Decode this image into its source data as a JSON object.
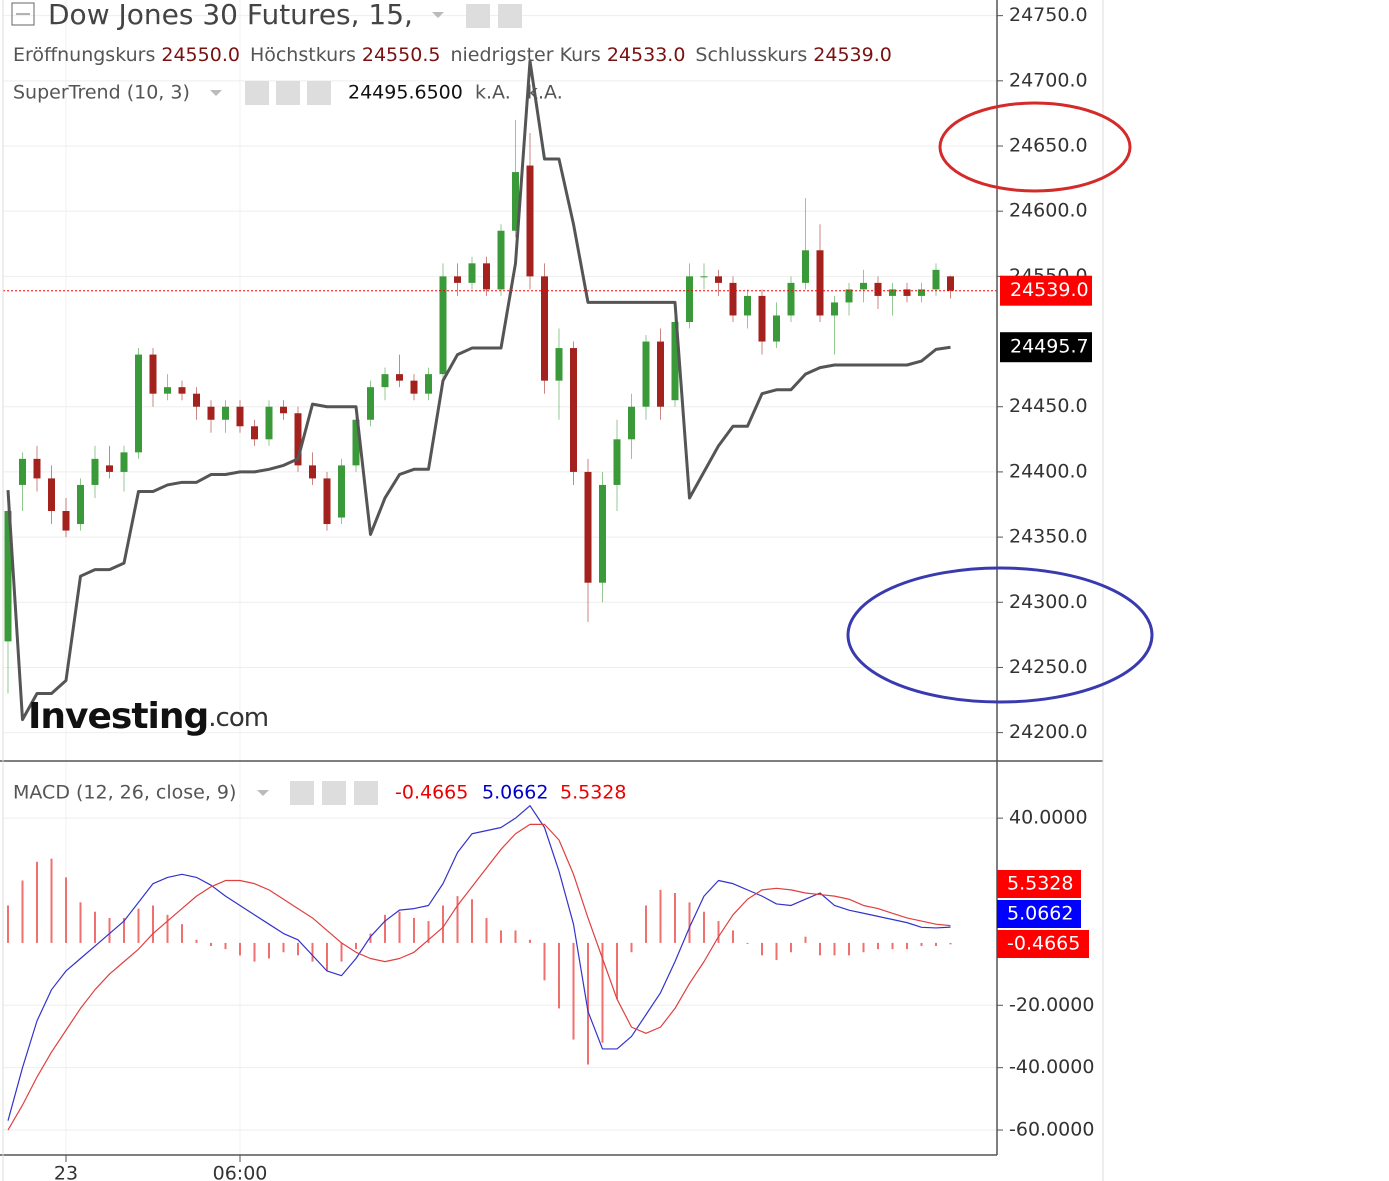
{
  "header": {
    "title": "Dow Jones 30 Futures, 15,",
    "ohlc": [
      {
        "label": "Eröffnungskurs",
        "value": "24550.0"
      },
      {
        "label": "Höchstkurs",
        "value": "24550.5"
      },
      {
        "label": "niedrigster Kurs",
        "value": "24533.0"
      },
      {
        "label": "Schlusskurs",
        "value": "24539.0"
      }
    ],
    "indicator_extra": [
      "k.A.",
      "k.A."
    ]
  },
  "logo": {
    "brand": "Investing",
    "suffix": ".com"
  },
  "chart_data": [
    {
      "type": "candlestick",
      "categories": [
        null,
        null,
        null,
        null,
        "23",
        null,
        null,
        null,
        null,
        null,
        null,
        null,
        null,
        null,
        null,
        null,
        "06:00",
        null,
        null,
        null,
        null,
        null,
        null,
        null,
        null,
        null,
        null,
        null,
        null,
        null,
        null,
        null,
        null,
        null,
        null,
        null,
        null,
        null,
        null,
        null,
        null,
        null,
        null,
        null,
        null,
        null,
        null,
        null,
        null,
        null,
        null,
        null,
        null,
        null,
        null,
        null,
        null,
        null,
        null,
        null,
        null,
        null,
        null,
        null,
        null,
        null
      ],
      "open": [
        24270,
        24390,
        24410,
        24395,
        24370,
        24360,
        24390,
        24405,
        24400,
        24415,
        24490,
        24460,
        24465,
        24460,
        24450,
        24440,
        24450,
        24435,
        24425,
        24450,
        24445,
        24405,
        24395,
        24365,
        24405,
        24440,
        24465,
        24475,
        24470,
        24460,
        24475,
        24550,
        24545,
        24560,
        24540,
        24585,
        24635,
        24550,
        24470,
        24495,
        24400,
        24315,
        24390,
        24425,
        24450,
        24500,
        24455,
        24515,
        24550,
        24550,
        24545,
        24520,
        24535,
        24500,
        24520,
        24545,
        24570,
        24520,
        24530,
        24540,
        24545,
        24535,
        24540,
        24535,
        24540,
        24550
      ],
      "high": [
        24380,
        24415,
        24420,
        24405,
        24380,
        24395,
        24420,
        24420,
        24420,
        24495,
        24495,
        24475,
        24470,
        24465,
        24455,
        24455,
        24455,
        24440,
        24455,
        24455,
        24450,
        24415,
        24400,
        24410,
        24445,
        24470,
        24480,
        24490,
        24475,
        24480,
        24560,
        24560,
        24565,
        24565,
        24590,
        24670,
        24660,
        24560,
        24510,
        24500,
        24410,
        24400,
        24440,
        24460,
        24505,
        24510,
        24520,
        24560,
        24560,
        24555,
        24550,
        24540,
        24540,
        24530,
        24550,
        24610,
        24590,
        24535,
        24545,
        24555,
        24550,
        24545,
        24545,
        24545,
        24560,
        24550.5
      ],
      "low": [
        24230,
        24370,
        24385,
        24360,
        24350,
        24355,
        24380,
        24395,
        24385,
        24410,
        24450,
        24455,
        24455,
        24440,
        24430,
        24430,
        24430,
        24420,
        24420,
        24440,
        24400,
        24390,
        24355,
        24360,
        24400,
        24435,
        24455,
        24465,
        24455,
        24455,
        24470,
        24535,
        24540,
        24535,
        24535,
        24580,
        24540,
        24460,
        24440,
        24390,
        24285,
        24300,
        24370,
        24410,
        24440,
        24440,
        24450,
        24510,
        24540,
        24535,
        24515,
        24510,
        24490,
        24495,
        24515,
        24540,
        24515,
        24490,
        24520,
        24530,
        24525,
        24520,
        24530,
        24530,
        24535,
        24533
      ],
      "close": [
        24370,
        24410,
        24395,
        24370,
        24355,
        24390,
        24410,
        24400,
        24415,
        24490,
        24460,
        24465,
        24460,
        24450,
        24440,
        24450,
        24435,
        24425,
        24450,
        24445,
        24405,
        24395,
        24360,
        24405,
        24440,
        24465,
        24475,
        24470,
        24460,
        24475,
        24550,
        24545,
        24560,
        24540,
        24585,
        24630,
        24550,
        24470,
        24495,
        24400,
        24315,
        24390,
        24425,
        24450,
        24500,
        24450,
        24515,
        24550,
        24550,
        24545,
        24520,
        24535,
        24500,
        24520,
        24545,
        24570,
        24520,
        24530,
        24540,
        24545,
        24535,
        24540,
        24535,
        24540,
        24555,
        24539
      ],
      "close_label": "24539.0",
      "up_color": "#3a9a3a",
      "down_color": "#a3221e",
      "last_price_color": "#ff0000",
      "series": [
        {
          "name": "SuperTrend (10, 3)",
          "color": "#555555",
          "value_label": "24495.6500",
          "badge": "24495.7",
          "values": [
            24386,
            24210,
            24230,
            24230,
            24240,
            24320,
            24325,
            24325,
            24330,
            24385,
            24385,
            24390,
            24392,
            24392,
            24398,
            24398,
            24400,
            24400,
            24402,
            24405,
            24410,
            24452,
            24450,
            24450,
            24450,
            24352,
            24380,
            24398,
            24402,
            24402,
            24470,
            24490,
            24495,
            24495,
            24495,
            24560,
            24715,
            24640,
            24640,
            24590,
            24530,
            24530,
            24530,
            24530,
            24530,
            24530,
            24530,
            24380,
            24400,
            24420,
            24435,
            24435,
            24460,
            24463,
            24463,
            24475,
            24480,
            24482,
            24482,
            24482,
            24482,
            24482,
            24482,
            24485,
            24494,
            24495.65
          ]
        }
      ],
      "ylim": [
        24179,
        24762
      ],
      "yticks": [
        {
          "value": 24200,
          "label": "24200.0"
        },
        {
          "value": 24250,
          "label": "24250.0"
        },
        {
          "value": 24300,
          "label": "24300.0"
        },
        {
          "value": 24350,
          "label": "24350.0"
        },
        {
          "value": 24400,
          "label": "24400.0"
        },
        {
          "value": 24450,
          "label": "24450.0"
        },
        {
          "value": 24550,
          "label": "24550.0"
        },
        {
          "value": 24600,
          "label": "24600.0"
        },
        {
          "value": 24650,
          "label": "24650.0"
        },
        {
          "value": 24700,
          "label": "24700.0"
        },
        {
          "value": 24750,
          "label": "24750.0"
        }
      ],
      "grid": true
    },
    {
      "type": "macd",
      "title": "MACD (12, 26, close, 9)",
      "series": [
        {
          "kind": "histogram",
          "color": "#f07070",
          "value_label": "-0.4665",
          "badge_color": "#ff0000",
          "values": [
            12,
            20,
            26,
            27,
            21,
            13,
            10,
            8,
            8,
            11,
            12,
            9,
            6,
            1,
            -1,
            -2,
            -4,
            -6,
            -5,
            -3,
            -4,
            -6,
            -9,
            -6,
            -2,
            3,
            9,
            10,
            8,
            7,
            12,
            15,
            14,
            8,
            4,
            4,
            1,
            -12,
            -21,
            -31,
            -39,
            -32,
            -18,
            -3,
            12,
            17,
            16,
            13,
            10,
            7,
            4,
            0,
            -4,
            -5.5,
            -3,
            2,
            -4,
            -4,
            -4,
            -3,
            -2,
            -2,
            -2,
            -1,
            -1,
            -0.4665
          ]
        },
        {
          "kind": "line",
          "color": "#3333cc",
          "value_label": "5.0662",
          "badge_color": "#0000ff",
          "values": [
            -57,
            -40,
            -25,
            -15,
            -9,
            -5,
            -1,
            3,
            7,
            13,
            19,
            21,
            22,
            21,
            18.5,
            15,
            12,
            9,
            6,
            3,
            1,
            -4,
            -9,
            -10.5,
            -5,
            2,
            7,
            10.5,
            11,
            12,
            19,
            29,
            35,
            36,
            37,
            40,
            44,
            37,
            23,
            6,
            -22,
            -34,
            -34,
            -30,
            -23,
            -16,
            -6,
            5,
            15,
            20,
            19,
            17,
            15,
            12.5,
            12,
            14,
            16,
            12,
            10.5,
            9.5,
            8.5,
            7.5,
            6.5,
            5,
            4.8,
            5.0662
          ]
        },
        {
          "kind": "line",
          "color": "#e04040",
          "value_label": "5.5328",
          "badge_color": "#ff0000",
          "values": [
            -60,
            -52,
            -43,
            -35,
            -28,
            -21,
            -15,
            -10,
            -6,
            -2,
            3,
            7,
            11,
            15,
            18,
            20,
            20,
            19,
            17,
            14,
            11,
            8,
            4,
            0,
            -3,
            -5,
            -6,
            -5,
            -3,
            1,
            5,
            12,
            18,
            24,
            30,
            35,
            38,
            38,
            33,
            22,
            8,
            -5,
            -18,
            -27,
            -29,
            -27,
            -21,
            -13,
            -6,
            2,
            9,
            14,
            17,
            17.5,
            17,
            16,
            15.5,
            15,
            14,
            12,
            11,
            9.5,
            8,
            7,
            6,
            5.5328
          ]
        }
      ],
      "ylim": [
        -68,
        58
      ],
      "yticks": [
        {
          "value": 40,
          "label": "40.0000"
        },
        {
          "value": -20,
          "label": "-20.0000"
        },
        {
          "value": -40,
          "label": "-40.0000"
        },
        {
          "value": -60,
          "label": "-60.0000"
        }
      ],
      "grid": true
    }
  ]
}
